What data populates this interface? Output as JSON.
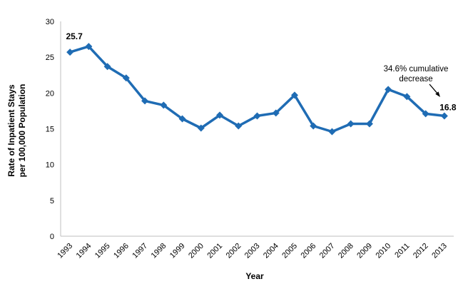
{
  "chart_data": {
    "type": "line",
    "title": "",
    "xlabel": "Year",
    "ylabel_lines": [
      "Rate of Inpatient Stays",
      "per 100,000  Population"
    ],
    "categories": [
      "1993",
      "1994",
      "1995",
      "1996",
      "1997",
      "1998",
      "1999",
      "2000",
      "2001",
      "2002",
      "2003",
      "2004",
      "2005",
      "2006",
      "2007",
      "2008",
      "2009",
      "2010",
      "2011",
      "2012",
      "2013"
    ],
    "series": [
      {
        "name": "Rate of inpatient stays per 100,000 population",
        "values": [
          25.7,
          26.5,
          23.7,
          22.1,
          18.9,
          18.3,
          16.4,
          15.1,
          16.9,
          15.4,
          16.8,
          17.2,
          19.7,
          15.4,
          14.6,
          15.7,
          15.7,
          20.5,
          19.5,
          17.1,
          16.8
        ]
      }
    ],
    "ylim": [
      0,
      30
    ],
    "yticks": [
      0,
      5,
      10,
      15,
      20,
      25,
      30
    ],
    "grid": false,
    "legend": false,
    "marker": "diamond",
    "point_labels": [
      {
        "index": 0,
        "text": "25.7"
      },
      {
        "index": 20,
        "text": "16.8"
      }
    ],
    "annotation": {
      "lines": [
        "34.6% cumulative",
        "decrease"
      ],
      "points_to": "2013 data point"
    },
    "colors": {
      "line": "#1F6CB4",
      "axis": "#BFBFBF",
      "text": "#000000"
    }
  }
}
